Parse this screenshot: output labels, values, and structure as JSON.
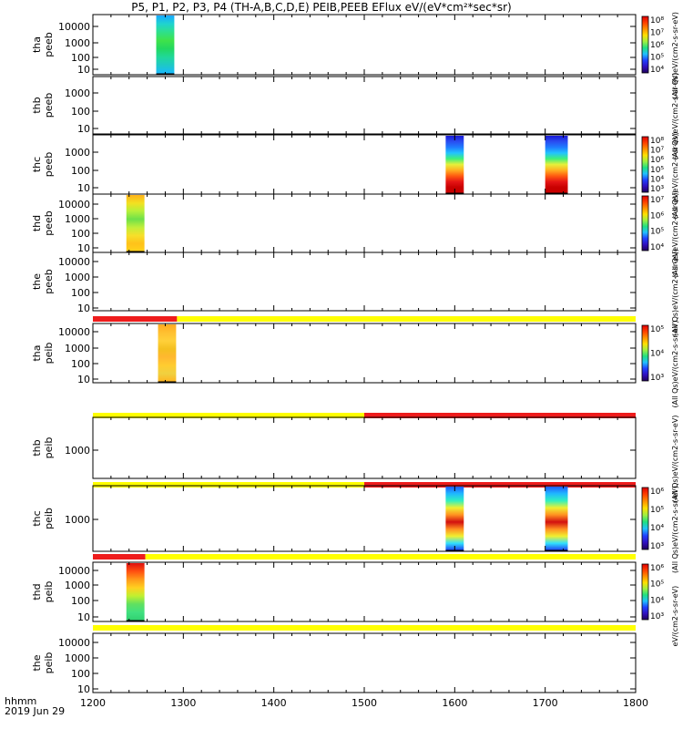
{
  "title": "P5, P1, P2, P3, P4 (TH-A,B,C,D,E) PEIB,PEEB EFlux eV/(eV*cm²*sec*sr)",
  "footer": {
    "time_label": "hhmm",
    "date_label": "2019 Jun 29"
  },
  "colors": {
    "flag_red": "#ee1c1c",
    "flag_yellow": "#ffff00",
    "frame": "#000000"
  },
  "chart_data": {
    "type": "heatmap",
    "x_range": [
      1200,
      1800
    ],
    "x_ticks": [
      "1200",
      "1300",
      "1400",
      "1500",
      "1600",
      "1700",
      "1800"
    ],
    "panels": [
      {
        "probe": "tha",
        "product": "peeb",
        "y_ticks": [
          "10000",
          "1000",
          "100",
          "10"
        ],
        "blocks": [
          {
            "x": [
              1270,
              1290
            ],
            "palette": "green"
          }
        ]
      },
      {
        "probe": "thb",
        "product": "peeb",
        "y_ticks": [
          "1000",
          "100",
          "10"
        ],
        "blocks": []
      },
      {
        "probe": "thc",
        "product": "peeb",
        "y_ticks": [
          "1000",
          "100",
          "10"
        ],
        "blocks": [
          {
            "x": [
              1590,
              1610
            ],
            "palette": "blue_to_red"
          },
          {
            "x": [
              1700,
              1725
            ],
            "palette": "blue_to_red"
          }
        ]
      },
      {
        "probe": "thd",
        "product": "peeb",
        "y_ticks": [
          "10000",
          "1000",
          "100",
          "10"
        ],
        "blocks": [
          {
            "x": [
              1237,
              1257
            ],
            "palette": "yellow_green"
          }
        ]
      },
      {
        "probe": "the",
        "product": "peeb",
        "y_ticks": [
          "10000",
          "1000",
          "100",
          "10"
        ],
        "blocks": []
      },
      {
        "probe": "tha",
        "product": "peib",
        "y_ticks": [
          "10000",
          "1000",
          "100",
          "10"
        ],
        "flag": [
          {
            "x": [
              1200,
              1293
            ],
            "color": "red"
          },
          {
            "x": [
              1293,
              1800
            ],
            "color": "yellow"
          }
        ],
        "blocks": [
          {
            "x": [
              1272,
              1292
            ],
            "palette": "orange_yellow"
          }
        ]
      },
      {
        "probe": "thb",
        "product": "peib",
        "y_ticks": [
          "1000"
        ],
        "flag": [
          {
            "x": [
              1200,
              1500
            ],
            "color": "yellow"
          },
          {
            "x": [
              1500,
              1800
            ],
            "color": "red"
          }
        ],
        "blocks": []
      },
      {
        "probe": "thc",
        "product": "peib",
        "y_ticks": [
          "1000"
        ],
        "flag": [
          {
            "x": [
              1200,
              1500
            ],
            "color": "yellow"
          },
          {
            "x": [
              1500,
              1800
            ],
            "color": "red"
          }
        ],
        "blocks": [
          {
            "x": [
              1590,
              1610
            ],
            "palette": "blue_red_bands"
          },
          {
            "x": [
              1700,
              1725
            ],
            "palette": "blue_red_bands"
          }
        ]
      },
      {
        "probe": "thd",
        "product": "peib",
        "y_ticks": [
          "10000",
          "1000",
          "100",
          "10"
        ],
        "flag": [
          {
            "x": [
              1200,
              1258
            ],
            "color": "red"
          },
          {
            "x": [
              1258,
              1800
            ],
            "color": "yellow"
          }
        ],
        "blocks": [
          {
            "x": [
              1237,
              1257
            ],
            "palette": "red_to_green"
          }
        ]
      },
      {
        "probe": "the",
        "product": "peib",
        "y_ticks": [
          "10000",
          "1000",
          "100",
          "10"
        ],
        "flag": [
          {
            "x": [
              1200,
              1800
            ],
            "color": "yellow"
          }
        ],
        "blocks": []
      }
    ],
    "colorbars": [
      {
        "ticks": [
          "10⁸",
          "10⁷",
          "10⁶",
          "10⁵",
          "10⁴"
        ],
        "unit": "(All Qs)eV/(cm2-s-sr-eV)"
      },
      {
        "ticks": [],
        "unit": "(All Qs)eV/(cm2-s-sr-eV)"
      },
      {
        "ticks": [
          "10⁸",
          "10⁷",
          "10⁶",
          "10⁵",
          "10⁴",
          "10³"
        ],
        "unit": "(All Qs)eV/(cm2-s-sr-eV)"
      },
      {
        "ticks": [
          "10⁷",
          "10⁶",
          "10⁵",
          "10⁴"
        ],
        "unit": "(All Qs)eV/(cm2-s-sr-eV)"
      },
      {
        "ticks": [],
        "unit": "(All Qs)eV/(cm2-s-sr-eV)"
      },
      {
        "ticks": [
          "10⁵",
          "10⁴",
          "10³"
        ],
        "unit": "(All Qs)eV/(cm2-s-sr-eV)"
      },
      {
        "ticks": [],
        "unit": "(All Qs)eV/(cm2-s-sr-eV)"
      },
      {
        "ticks": [
          "10⁶",
          "10⁵",
          "10⁴",
          "10³"
        ],
        "unit": "(All Qs)eV/(cm2-s-sr-eV)"
      },
      {
        "ticks": [
          "10⁶",
          "10⁵",
          "10⁴",
          "10³"
        ],
        "unit": "eV/(cm2-s-sr-eV)"
      },
      {
        "ticks": [],
        "unit": ""
      }
    ]
  }
}
